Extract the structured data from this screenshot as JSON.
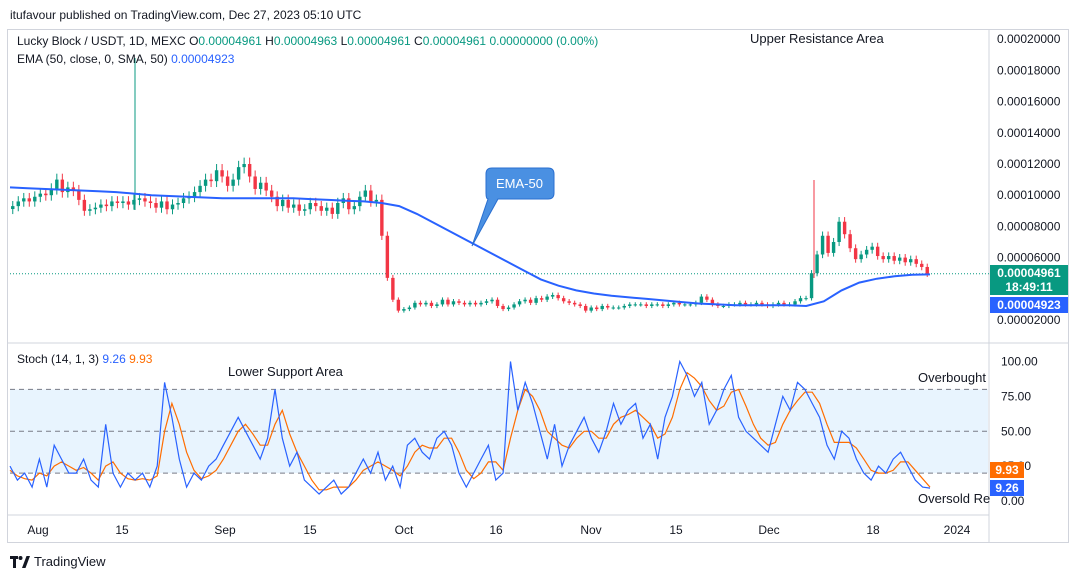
{
  "header": {
    "publisher_line": "itufavour published on TradingView.com, Dec 27, 2023 05:10 UTC"
  },
  "legend": {
    "symbol": "Lucky Block / USDT, 1D, MEXC",
    "o_label": "O",
    "o": "0.00004961",
    "h_label": "H",
    "h": "0.00004963",
    "l_label": "L",
    "l": "0.00004961",
    "c_label": "C",
    "c": "0.00004961",
    "change": "0.00000000 (0.00%)",
    "ema_label": "EMA (50, close, 0, SMA, 50)",
    "ema_value": "0.00004923",
    "stoch_label": "Stoch (14, 1, 3)",
    "stoch_k": "9.26",
    "stoch_d": "9.93"
  },
  "price_tags": {
    "last_price": "0.00004961",
    "countdown": "18:49:11",
    "ema": "0.00004923",
    "stoch_d": "9.93",
    "stoch_k": "9.26"
  },
  "annotations": {
    "upper_resistance": "Upper Resistance Area",
    "ema_callout": "EMA-50",
    "lower_support": "Lower Support Area",
    "overbought": "Overbought",
    "oversold": "Oversold Re"
  },
  "footer": {
    "brand": "TradingView"
  },
  "colors": {
    "up": "#089981",
    "down": "#f23645",
    "ema": "#2962ff",
    "stoch_k": "#2962ff",
    "stoch_d": "#ff6d00",
    "band": "#2196f3"
  },
  "chart_data": [
    {
      "type": "candlestick",
      "price_axis_labels": [
        "0.00020000",
        "0.00018000",
        "0.00016000",
        "0.00014000",
        "0.00012000",
        "0.00010000",
        "0.00008000",
        "0.00006000",
        "0.00002000"
      ],
      "ylim": [
        1e-05,
        0.000205
      ],
      "x_tick_labels": [
        "Aug",
        "15",
        "Sep",
        "15",
        "Oct",
        "16",
        "Nov",
        "15",
        "Dec",
        "18",
        "2024"
      ],
      "close": [
        9.3,
        9.6,
        9.8,
        9.6,
        9.9,
        10.1,
        10.0,
        10.4,
        11.0,
        10.2,
        10.5,
        10.3,
        9.7,
        9.0,
        9.1,
        9.2,
        9.4,
        9.3,
        9.6,
        9.5,
        9.6,
        9.4,
        9.7,
        9.8,
        9.6,
        9.5,
        9.2,
        9.6,
        9.1,
        9.4,
        9.5,
        9.8,
        9.9,
        10.2,
        10.6,
        11.0,
        10.9,
        11.6,
        11.2,
        10.6,
        11.0,
        11.8,
        12.0,
        11.2,
        10.4,
        10.8,
        10.3,
        9.9,
        9.3,
        9.7,
        9.2,
        9.4,
        9.0,
        9.1,
        9.5,
        9.3,
        9.0,
        9.2,
        8.8,
        9.5,
        9.8,
        9.1,
        9.3,
        9.9,
        10.3,
        9.6,
        9.7,
        7.4,
        4.7,
        3.3,
        2.6,
        2.7,
        2.8,
        3.1,
        3.0,
        3.1,
        2.9,
        3.0,
        3.3,
        3.0,
        3.2,
        3.1,
        3.0,
        3.1,
        3.0,
        3.1,
        3.2,
        3.3,
        2.9,
        2.7,
        2.8,
        3.0,
        3.2,
        3.3,
        3.1,
        3.4,
        3.3,
        3.5,
        3.6,
        3.4,
        3.2,
        3.1,
        3.0,
        2.9,
        2.6,
        2.8,
        2.7,
        2.9,
        2.8,
        2.8,
        2.8,
        2.9,
        3.0,
        3.0,
        3.0,
        2.9,
        3.0,
        3.0,
        2.9,
        3.0,
        3.1,
        3.0,
        3.0,
        3.0,
        3.1,
        3.5,
        3.3,
        3.0,
        2.9,
        2.9,
        3.0,
        3.0,
        3.1,
        3.0,
        3.0,
        3.1,
        3.0,
        2.9,
        3.0,
        3.1,
        3.0,
        3.0,
        3.2,
        3.4,
        3.4,
        5.0,
        6.2,
        7.4,
        6.3,
        7.0,
        8.3,
        7.5,
        6.6,
        5.9,
        6.2,
        6.5,
        6.7,
        6.1,
        5.9,
        6.1,
        5.8,
        6.0,
        5.7,
        5.9,
        5.6,
        5.4,
        4.96
      ],
      "ema50": [
        10.5,
        10.45,
        10.4,
        10.35,
        10.3,
        10.25,
        10.2,
        10.1,
        10.0,
        9.95,
        9.9,
        9.85,
        9.8,
        9.8,
        9.8,
        9.8,
        9.8,
        9.75,
        9.7,
        9.65,
        9.6,
        9.5,
        9.3,
        8.8,
        8.2,
        7.6,
        7.0,
        6.4,
        5.8,
        5.2,
        4.6,
        4.2,
        3.9,
        3.7,
        3.55,
        3.45,
        3.35,
        3.25,
        3.15,
        3.05,
        3.0,
        2.95,
        2.95,
        2.95,
        2.95,
        2.9,
        3.2,
        3.9,
        4.4,
        4.65,
        4.8,
        4.9,
        4.923
      ],
      "unit_note": "price values are x 1e-5 USDT"
    },
    {
      "type": "line",
      "title": "Stoch (14, 1, 3)",
      "ylim": [
        0,
        100
      ],
      "y_tick_labels": [
        "100.00",
        "75.00",
        "50.00",
        "25.00",
        "0.00"
      ],
      "bands": {
        "upper": 80,
        "middle": 50,
        "lower": 20
      },
      "series": [
        {
          "name": "%K",
          "values": [
            25,
            15,
            20,
            10,
            30,
            10,
            40,
            30,
            20,
            20,
            30,
            15,
            10,
            55,
            20,
            10,
            20,
            15,
            20,
            10,
            25,
            85,
            60,
            30,
            10,
            20,
            15,
            25,
            30,
            40,
            50,
            60,
            50,
            40,
            30,
            45,
            80,
            45,
            25,
            35,
            15,
            10,
            5,
            10,
            15,
            5,
            10,
            20,
            30,
            20,
            35,
            15,
            25,
            10,
            40,
            45,
            35,
            30,
            45,
            50,
            40,
            20,
            10,
            20,
            30,
            40,
            15,
            20,
            100,
            65,
            85,
            70,
            50,
            30,
            55,
            25,
            40,
            50,
            60,
            45,
            35,
            50,
            70,
            55,
            65,
            70,
            45,
            55,
            30,
            60,
            75,
            100,
            90,
            75,
            85,
            55,
            65,
            80,
            90,
            60,
            50,
            45,
            40,
            35,
            55,
            75,
            65,
            85,
            80,
            70,
            60,
            40,
            30,
            50,
            45,
            30,
            20,
            15,
            25,
            20,
            30,
            35,
            25,
            15,
            10,
            9.26
          ]
        },
        {
          "name": "%D",
          "values": [
            22,
            18,
            16,
            15,
            20,
            18,
            25,
            28,
            25,
            22,
            24,
            20,
            15,
            25,
            28,
            20,
            16,
            15,
            16,
            15,
            18,
            50,
            70,
            55,
            35,
            22,
            16,
            18,
            22,
            30,
            40,
            50,
            55,
            48,
            40,
            40,
            55,
            65,
            48,
            35,
            25,
            15,
            8,
            8,
            10,
            10,
            10,
            15,
            22,
            25,
            28,
            25,
            22,
            18,
            25,
            35,
            40,
            38,
            38,
            45,
            45,
            35,
            22,
            16,
            20,
            28,
            28,
            22,
            45,
            65,
            80,
            75,
            65,
            50,
            45,
            40,
            38,
            45,
            50,
            50,
            45,
            45,
            55,
            60,
            62,
            65,
            60,
            55,
            45,
            48,
            60,
            80,
            92,
            88,
            82,
            72,
            65,
            68,
            78,
            80,
            68,
            55,
            45,
            40,
            42,
            55,
            65,
            72,
            78,
            78,
            70,
            55,
            42,
            42,
            42,
            38,
            30,
            22,
            20,
            20,
            22,
            28,
            28,
            22,
            16,
            9.93
          ]
        }
      ]
    }
  ]
}
